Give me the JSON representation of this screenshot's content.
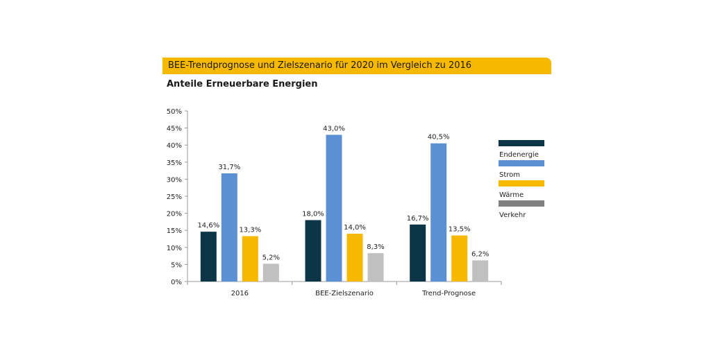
{
  "header": {
    "title": "BEE-Trendprognose und Zielszenario für 2020 im Vergleich zu 2016",
    "subtitle": "Anteile Erneuerbare Energien"
  },
  "chart_data": {
    "type": "bar",
    "categories": [
      "2016",
      "BEE-Zielszenario",
      "Trend-Prognose"
    ],
    "series": [
      {
        "name": "Endenergie",
        "values": [
          14.6,
          18.0,
          16.7
        ],
        "labels": [
          "14,6%",
          "18,0%",
          "16,7%"
        ],
        "color": "#0c3547"
      },
      {
        "name": "Strom",
        "values": [
          31.7,
          43.0,
          40.5
        ],
        "labels": [
          "31,7%",
          "43,0%",
          "40,5%"
        ],
        "color": "#5b90d4"
      },
      {
        "name": "Wärme",
        "values": [
          13.3,
          14.0,
          13.5
        ],
        "labels": [
          "13,3%",
          "14,0%",
          "13,5%"
        ],
        "color": "#f7b800"
      },
      {
        "name": "Verkehr",
        "values": [
          5.2,
          8.3,
          6.2
        ],
        "labels": [
          "5,2%",
          "8,3%",
          "6,2%"
        ],
        "color": "#c0c0c0",
        "legend_color": "#808080"
      }
    ],
    "ylim": [
      0,
      50
    ],
    "yticks": [
      "0%",
      "5%",
      "10%",
      "15%",
      "20%",
      "25%",
      "30%",
      "35%",
      "40%",
      "45%",
      "50%"
    ],
    "legend_position": "right"
  }
}
